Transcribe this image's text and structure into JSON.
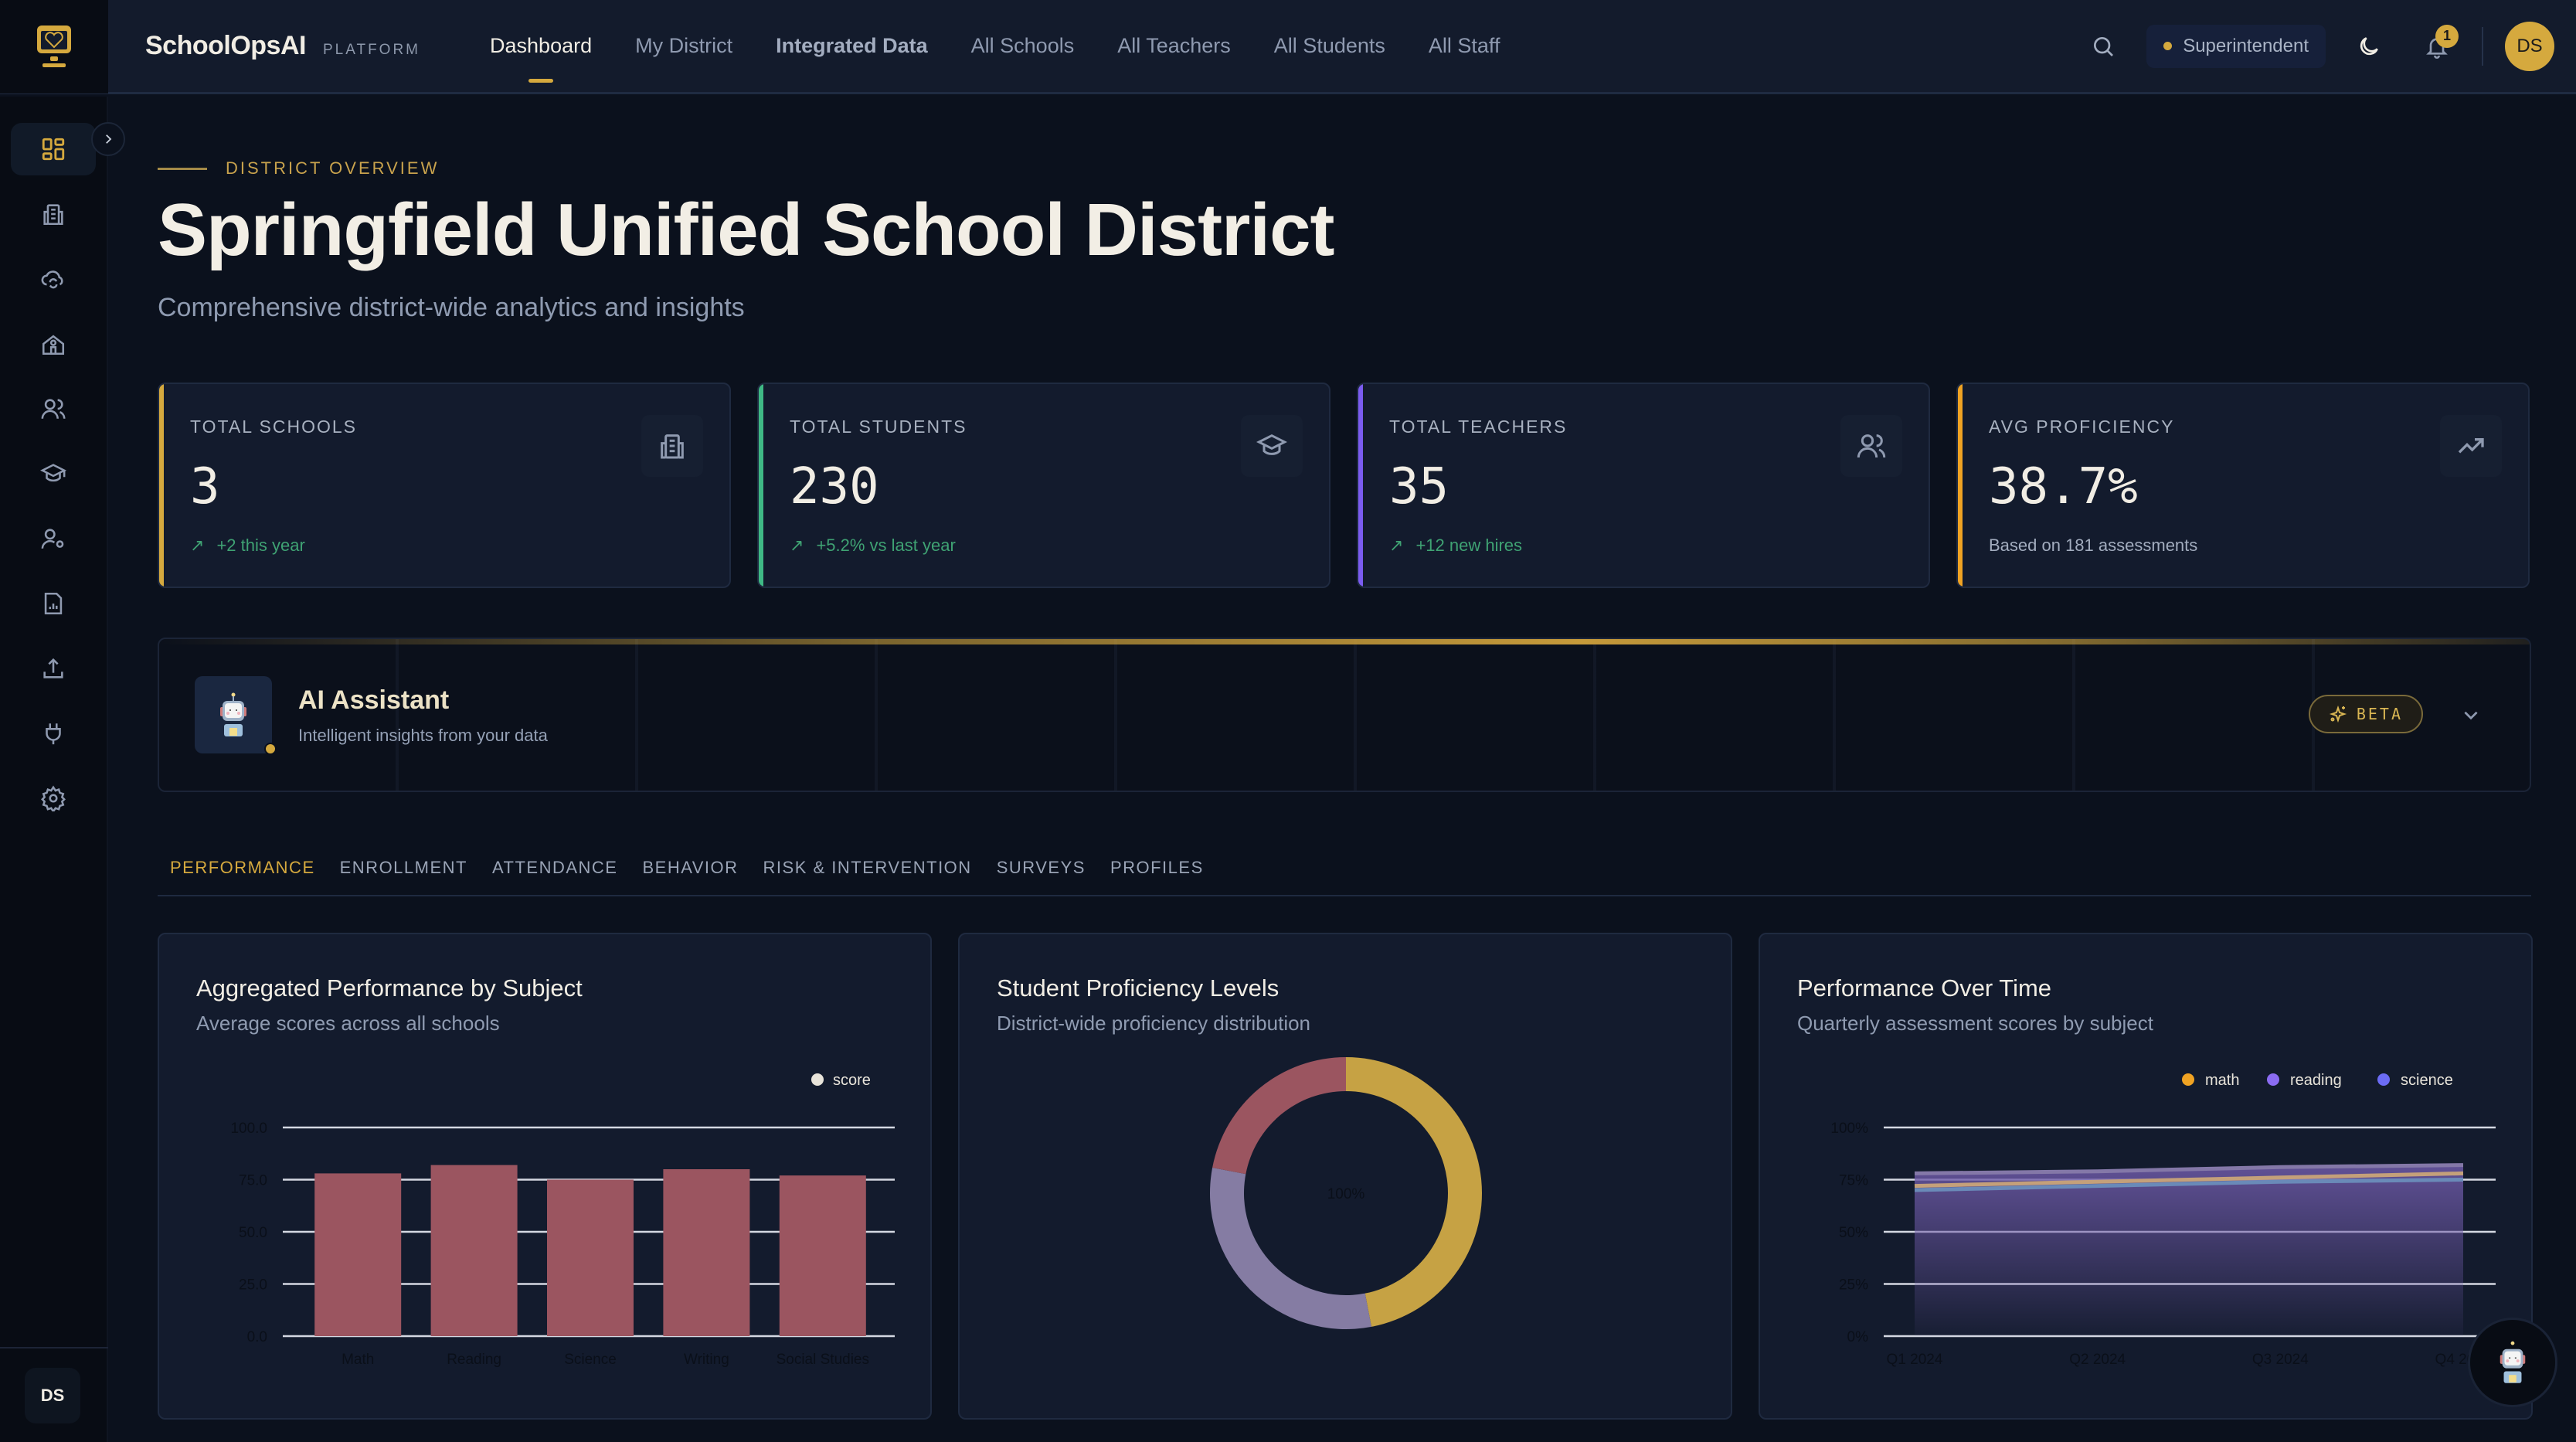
{
  "app": {
    "brand_name": "SchoolOpsAI",
    "brand_sub": "PLATFORM",
    "logo_icon": "monitor-heart-icon"
  },
  "nav": {
    "items": [
      {
        "label": "Dashboard",
        "active": true
      },
      {
        "label": "My District"
      },
      {
        "label": "Integrated Data",
        "bold": true
      },
      {
        "label": "All Schools"
      },
      {
        "label": "All Teachers"
      },
      {
        "label": "All Students"
      },
      {
        "label": "All Staff"
      }
    ]
  },
  "topbar": {
    "search_icon": "search-icon",
    "role": "Superintendent",
    "theme_icon": "moon-icon",
    "notifications_count": "1",
    "avatar_initials": "DS"
  },
  "sidebar": {
    "items": [
      {
        "icon": "dashboard-grid-icon",
        "active": true
      },
      {
        "icon": "building-icon"
      },
      {
        "icon": "cloud-sync-icon"
      },
      {
        "icon": "school-icon"
      },
      {
        "icon": "users-icon"
      },
      {
        "icon": "graduation-cap-icon"
      },
      {
        "icon": "user-settings-icon"
      },
      {
        "icon": "report-file-icon"
      },
      {
        "icon": "upload-icon"
      },
      {
        "icon": "plug-icon"
      },
      {
        "icon": "settings-gear-icon"
      }
    ],
    "user_initials": "DS"
  },
  "header": {
    "eyebrow": "DISTRICT OVERVIEW",
    "title": "Springfield Unified School District",
    "subtitle": "Comprehensive district-wide analytics and insights"
  },
  "stats": [
    {
      "label": "TOTAL SCHOOLS",
      "value": "3",
      "note": "+2 this year",
      "trend": "up",
      "accent": "#d5a93e",
      "icon": "building-icon"
    },
    {
      "label": "TOTAL STUDENTS",
      "value": "230",
      "note": "+5.2% vs last year",
      "trend": "up",
      "accent": "#3fb985",
      "icon": "graduation-cap-icon"
    },
    {
      "label": "TOTAL TEACHERS",
      "value": "35",
      "note": "+12 new hires",
      "trend": "up",
      "accent": "#7b5cf0",
      "icon": "users-icon"
    },
    {
      "label": "AVG PROFICIENCY",
      "value": "38.7%",
      "note": "Based on 181 assessments",
      "trend": "none",
      "accent": "#f0a323",
      "icon": "trending-up-icon"
    }
  ],
  "ai_assistant": {
    "title": "AI Assistant",
    "subtitle": "Intelligent insights from your data",
    "badge": "BETA"
  },
  "tabs": [
    {
      "label": "PERFORMANCE",
      "active": true
    },
    {
      "label": "ENROLLMENT"
    },
    {
      "label": "ATTENDANCE"
    },
    {
      "label": "BEHAVIOR"
    },
    {
      "label": "RISK & INTERVENTION"
    },
    {
      "label": "SURVEYS"
    },
    {
      "label": "PROFILES"
    }
  ],
  "charts": {
    "bar": {
      "title": "Aggregated Performance by Subject",
      "subtitle": "Average scores across all schools"
    },
    "donut": {
      "title": "Student Proficiency Levels",
      "subtitle": "District-wide proficiency distribution"
    },
    "line": {
      "title": "Performance Over Time",
      "subtitle": "Quarterly assessment scores by subject"
    }
  },
  "chart_data": [
    {
      "type": "bar",
      "title": "Aggregated Performance by Subject",
      "subtitle": "Average scores across all schools",
      "categories": [
        "Math",
        "Reading",
        "Science",
        "Writing",
        "Social Studies"
      ],
      "series": [
        {
          "name": "score",
          "values": [
            78,
            82,
            75,
            80,
            77
          ],
          "color": "#9b5560"
        }
      ],
      "yticks": [
        "0.0",
        "25.0",
        "50.0",
        "75.0",
        "100.0"
      ],
      "ylim": [
        0,
        100
      ],
      "legend_position": "top-right",
      "grid": true
    },
    {
      "type": "pie",
      "title": "Student Proficiency Levels",
      "subtitle": "District-wide proficiency distribution",
      "center_label": "100%",
      "slices": [
        {
          "value": 47,
          "color": "#c6a244"
        },
        {
          "value": 31,
          "color": "#857ca3"
        },
        {
          "value": 22,
          "color": "#9b5560"
        }
      ]
    },
    {
      "type": "area",
      "title": "Performance Over Time",
      "subtitle": "Quarterly assessment scores by subject",
      "categories": [
        "Q1 2024",
        "Q2 2024",
        "Q3 2024",
        "Q4 2024"
      ],
      "series": [
        {
          "name": "math",
          "values": [
            72,
            74,
            76,
            78
          ],
          "color": "#f0a323"
        },
        {
          "name": "reading",
          "values": [
            78,
            79,
            81,
            82
          ],
          "color": "#8b6cf2"
        },
        {
          "name": "science",
          "values": [
            70,
            72,
            74,
            75
          ],
          "color": "#6c6cf5"
        }
      ],
      "yticks": [
        "0%",
        "25%",
        "50%",
        "75%",
        "100%"
      ],
      "ylim": [
        0,
        100
      ],
      "legend_position": "top-right",
      "grid": true
    }
  ]
}
